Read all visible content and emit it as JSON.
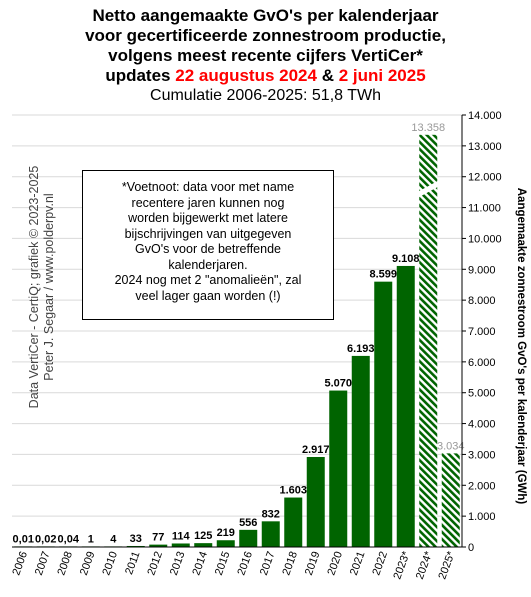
{
  "title": {
    "line1": "Netto aangemaakte GvO's per kalenderjaar",
    "line2": "voor gecertificeerde zonnestroom productie,",
    "line3": "volgens meest recente cijfers VertiCer*",
    "line4_prefix": "updates ",
    "line4_date1": "22 augustus 2024",
    "line4_amp": " & ",
    "line4_date2": "2 juni 2025"
  },
  "subtitle": "Cumulatie 2006-2025: 51,8 TWh",
  "footnote": {
    "lines": [
      "*Voetnoot: data voor met name",
      "recentere jaren kunnen nog",
      "worden bijgewerkt met latere",
      "bijschrijvingen  van uitgegeven",
      "GvO's  voor de betreffende",
      "kalenderjaren.",
      "2024 nog met 2 \"anomalieën\",  zal",
      "veel lager gaan worden (!)"
    ]
  },
  "watermark": {
    "line1": "Data VertiCer - CertiQ;  grafiek © 2023-2025",
    "line2": "Peter J. Segaar / www.polderpv.nl"
  },
  "chart_data": {
    "type": "bar",
    "categories": [
      "2006",
      "2007",
      "2008",
      "2009",
      "2010",
      "2011",
      "2012",
      "2013",
      "2014",
      "2015",
      "2016",
      "2017",
      "2018",
      "2019",
      "2020",
      "2021",
      "2022",
      "2023*",
      "2024*",
      "2025*"
    ],
    "values": [
      0.01,
      0.02,
      0.04,
      1,
      4,
      33,
      77,
      114,
      125,
      219,
      556,
      832,
      1603,
      2917,
      5070,
      6193,
      8599,
      9108,
      13358,
      3034
    ],
    "value_labels": [
      "0,01",
      "0,02",
      "0,04",
      "1",
      "4",
      "33",
      "77",
      "114",
      "125",
      "219",
      "556",
      "832",
      "1.603",
      "2.917",
      "5.070",
      "6.193",
      "8.599",
      "9.108",
      "13.358",
      "3.034"
    ],
    "hatched": [
      false,
      false,
      false,
      false,
      false,
      false,
      false,
      false,
      false,
      false,
      false,
      false,
      false,
      false,
      false,
      false,
      false,
      false,
      true,
      true
    ],
    "ylabel": "Aangemaakte zonnestroom GvO's per kalenderjaar (GWh)",
    "ylim": [
      0,
      14000
    ],
    "yticks": [
      0,
      1000,
      2000,
      3000,
      4000,
      5000,
      6000,
      7000,
      8000,
      9000,
      10000,
      11000,
      12000,
      13000,
      14000
    ],
    "ytick_labels": [
      "0",
      "1.000",
      "2.000",
      "3.000",
      "4.000",
      "5.000",
      "6.000",
      "7.000",
      "8.000",
      "9.000",
      "10.000",
      "11.000",
      "12.000",
      "13.000",
      "14.000"
    ],
    "yaxis_position": "right",
    "grid": true,
    "colors": {
      "bar": "#006400",
      "hatch_bg": "#ffffff",
      "grid": "#d9d9d9",
      "muted_label": "#999999"
    }
  }
}
